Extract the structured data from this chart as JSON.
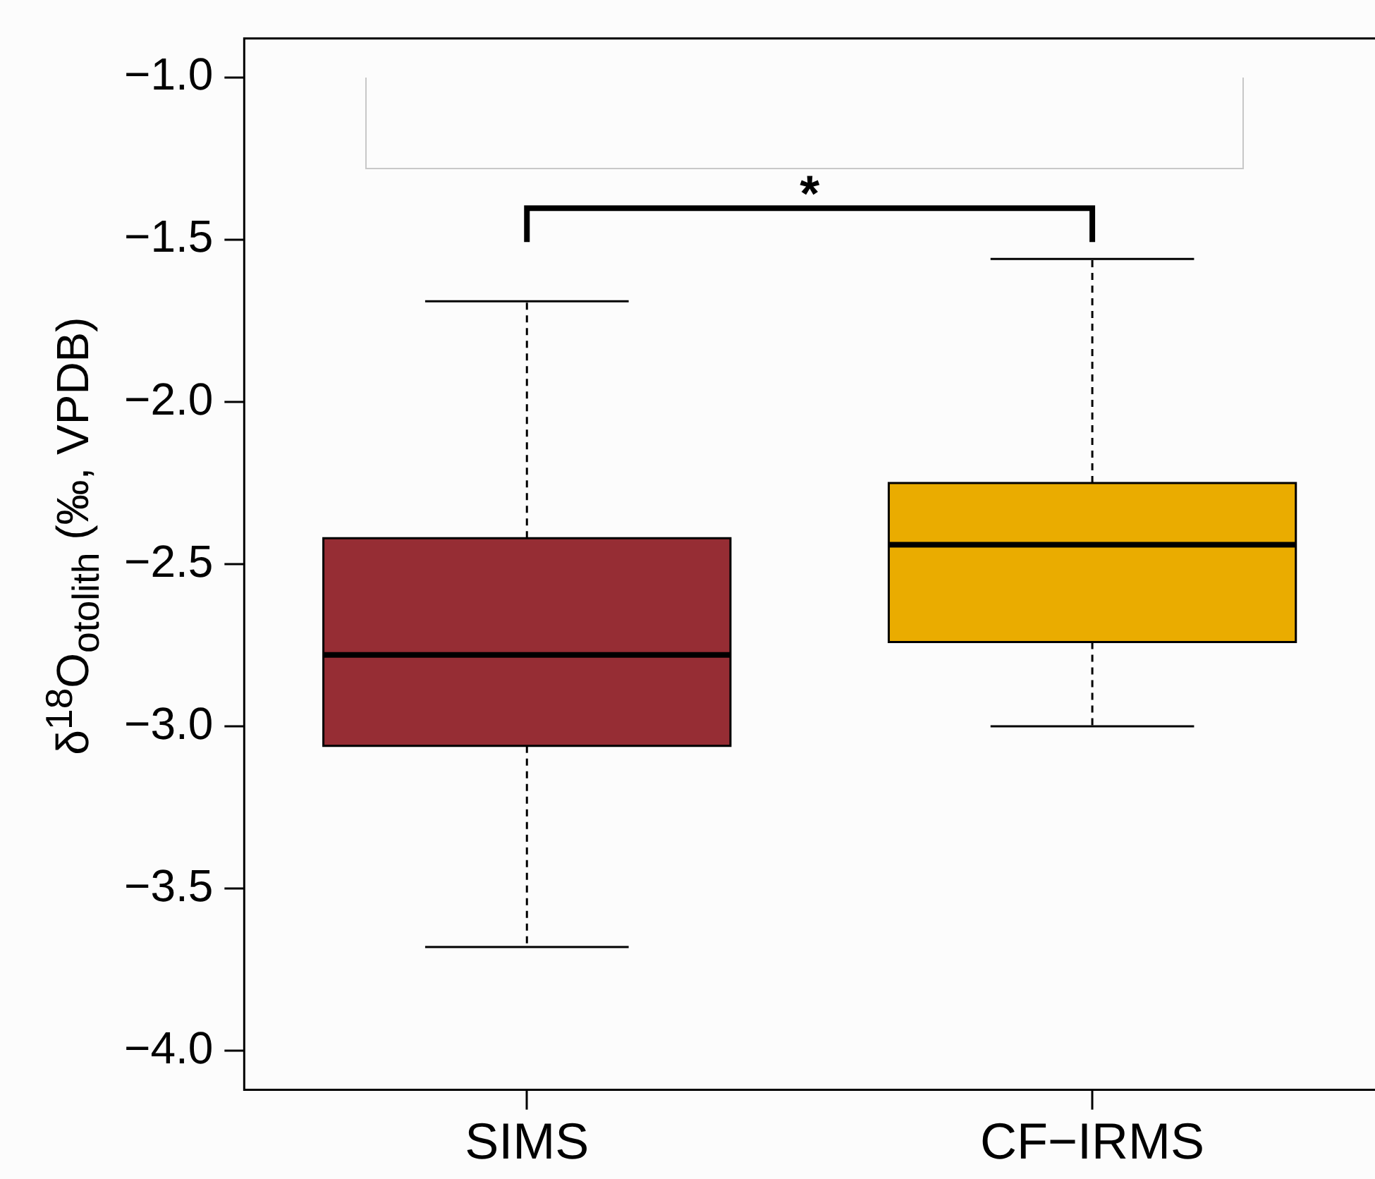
{
  "chart_data": {
    "type": "box",
    "ylabel": "δ$^{18}$O$_{otolith}$ (‰, VPDB)",
    "categories": [
      "SIMS",
      "CF−IRMS"
    ],
    "colors": [
      "#962d34",
      "#eaac00"
    ],
    "boxes": [
      {
        "low": -3.68,
        "q1": -3.06,
        "median": -2.78,
        "q3": -2.42,
        "high": -1.69
      },
      {
        "low": -3.0,
        "q1": -2.74,
        "median": -2.44,
        "q3": -2.25,
        "high": -1.56
      }
    ],
    "ylim": [
      -4.12,
      -0.88
    ],
    "yticks": [
      {
        "value": -4,
        "label": "−4.0"
      },
      {
        "value": -3.5,
        "label": "−3.5"
      },
      {
        "value": -3,
        "label": "−3.0"
      },
      {
        "value": -2.5,
        "label": "−2.5"
      },
      {
        "value": -2,
        "label": "−2.0"
      },
      {
        "value": -1.5,
        "label": "−1.5"
      },
      {
        "value": -1,
        "label": "−1.0"
      }
    ],
    "annotations": [
      "*"
    ],
    "grid": false,
    "legend": false
  }
}
